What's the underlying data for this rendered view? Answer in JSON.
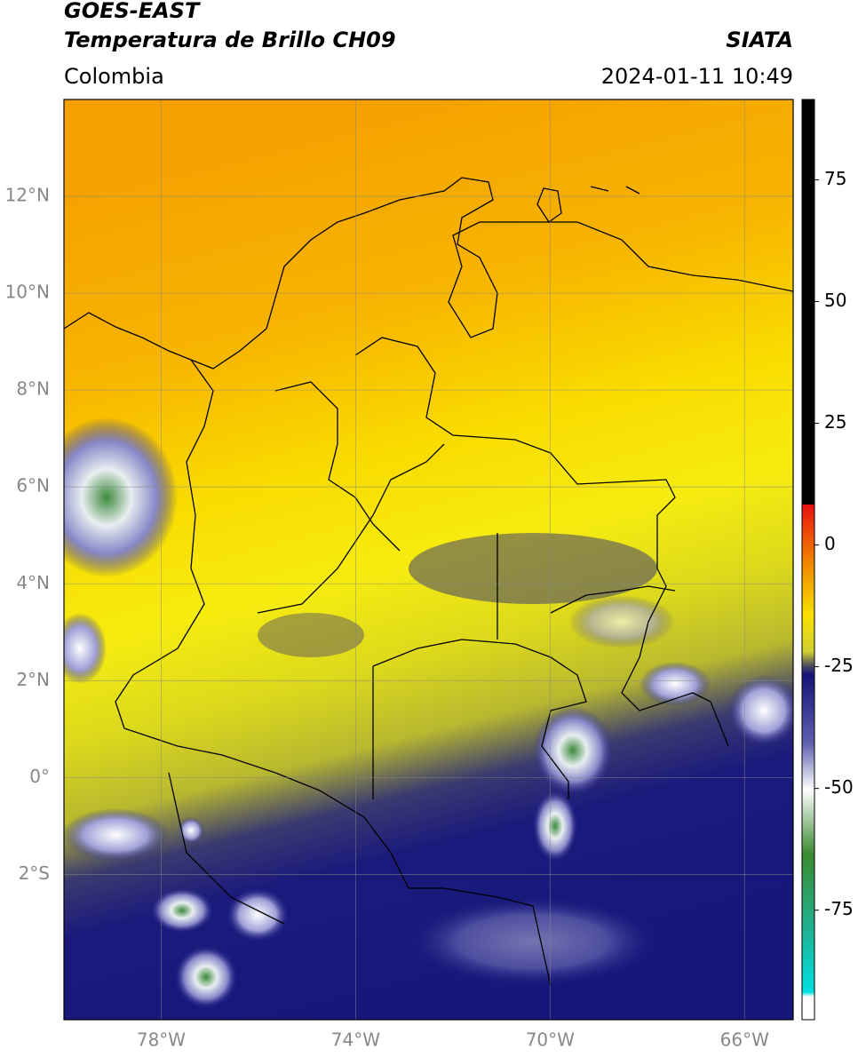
{
  "header": {
    "line1": "GOES-EAST",
    "line2": "Temperatura de Brillo CH09",
    "source": "SIATA",
    "region": "Colombia",
    "datetime": "2024-01-11 10:49"
  },
  "map": {
    "xlim": [
      -80,
      -65
    ],
    "ylim": [
      -5,
      14
    ],
    "xticks": [
      {
        "value": -78,
        "label": "78°W"
      },
      {
        "value": -74,
        "label": "74°W"
      },
      {
        "value": -70,
        "label": "70°W"
      },
      {
        "value": -66,
        "label": "66°W"
      }
    ],
    "yticks": [
      {
        "value": 12,
        "label": "12°N"
      },
      {
        "value": 10,
        "label": "10°N"
      },
      {
        "value": 8,
        "label": "8°N"
      },
      {
        "value": 6,
        "label": "6°N"
      },
      {
        "value": 4,
        "label": "4°N"
      },
      {
        "value": 2,
        "label": "2°N"
      },
      {
        "value": 0,
        "label": "0°"
      },
      {
        "value": -2,
        "label": "2°S"
      }
    ],
    "grid": true
  },
  "colorbar": {
    "lim": [
      -97.5,
      91.5
    ],
    "ticks": [
      75,
      50,
      25,
      0,
      -25,
      -50,
      -75
    ]
  }
}
